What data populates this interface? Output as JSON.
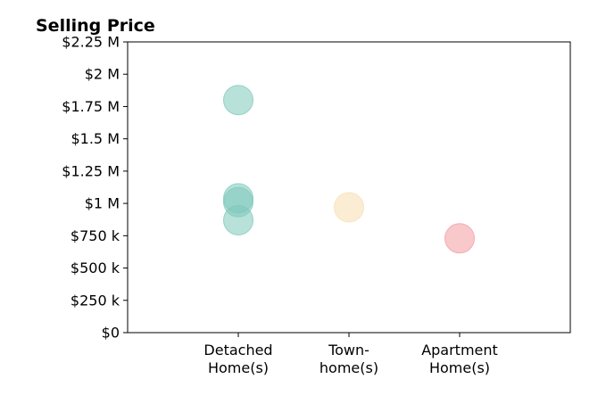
{
  "chart_data": {
    "type": "scatter",
    "title": "Selling Price",
    "xlabel": "",
    "ylabel": "",
    "categories": [
      [
        "Detached",
        "Home(s)"
      ],
      [
        "Town-",
        "home(s)"
      ],
      [
        "Apartment",
        "Home(s)"
      ]
    ],
    "xlim": [
      -1,
      3
    ],
    "ylim": [
      0,
      2250000
    ],
    "yticks": [
      0,
      250000,
      500000,
      750000,
      1000000,
      1250000,
      1500000,
      1750000,
      2000000,
      2250000
    ],
    "ytick_labels": [
      "$0",
      "$250 k",
      "$500 k",
      "$750 k",
      "$1 M",
      "$1.25 M",
      "$1.5 M",
      "$1.75 M",
      "$2 M",
      "$2.25 M"
    ],
    "grid": false,
    "legend": "none",
    "colors": {
      "detached": "#7ec8bb",
      "townhome": "#f7deb0",
      "apartment": "#f29aa1",
      "axis": "#000000"
    },
    "points": [
      {
        "category": 0,
        "value": 1800000,
        "color_key": "detached"
      },
      {
        "category": 0,
        "value": 1040000,
        "color_key": "detached"
      },
      {
        "category": 0,
        "value": 1010000,
        "color_key": "detached"
      },
      {
        "category": 0,
        "value": 870000,
        "color_key": "detached"
      },
      {
        "category": 1,
        "value": 970000,
        "color_key": "townhome"
      },
      {
        "category": 2,
        "value": 730000,
        "color_key": "apartment"
      }
    ]
  }
}
